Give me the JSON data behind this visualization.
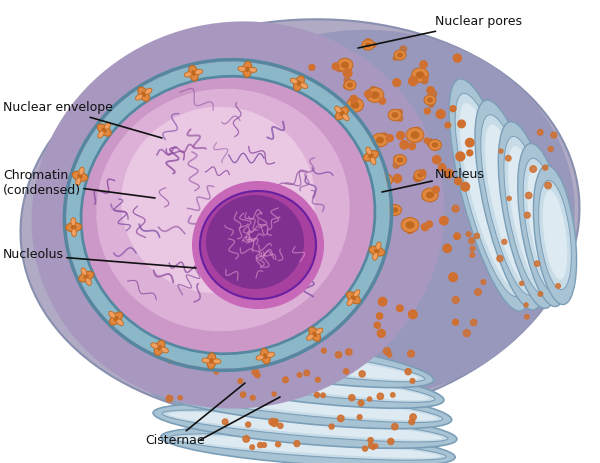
{
  "background_color": "#ffffff",
  "labels": {
    "nuclear_envelope": "Nuclear envelope",
    "chromatin": "Chromatin\n(condensed)",
    "nucleolus": "Nucleolus",
    "nuclear_pores": "Nuclear pores",
    "nucleus": "Nucleus",
    "cisternae": "Cisternae"
  },
  "colors": {
    "er_blue_dark": "#7b9eb8",
    "er_blue_mid": "#a8c4d4",
    "er_blue_light": "#c8dce8",
    "er_blue_inner": "#ddeaf2",
    "nucleus_gray_purple": "#a8a8c8",
    "nucleus_gray_outer": "#b0b8cc",
    "envelope_teal": "#8ab8c8",
    "envelope_line": "#5588a0",
    "nucleus_pink": "#d4a0cc",
    "nucleus_pink_light": "#e0b8d8",
    "nucleus_pink_lighter": "#eecce8",
    "chromatin_purple": "#9050a0",
    "chromatin_dark": "#7040a0",
    "nucleolus_outer": "#c060b0",
    "nucleolus_mid": "#a840a0",
    "nucleolus_dark": "#803090",
    "nucleolus_fiber": "#d080c0",
    "pore_orange": "#e08840",
    "pore_orange_dark": "#c06820",
    "pore_orange_light": "#f0a060",
    "ribosome_orange": "#d07030",
    "ribosome_light": "#e89050",
    "dot_small": "#c86820",
    "text_color": "#111111",
    "arrow_color": "#111111"
  },
  "figure_size": [
    6.0,
    4.63
  ],
  "dpi": 100
}
